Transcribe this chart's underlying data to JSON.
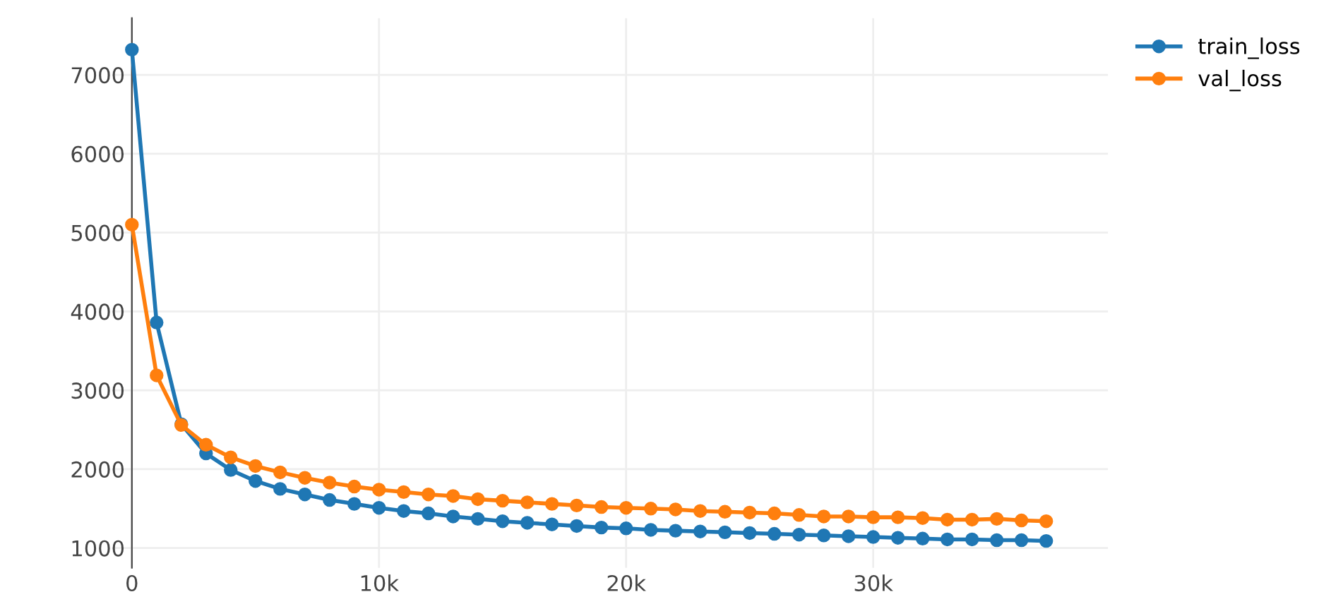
{
  "chart_data": {
    "type": "line",
    "x": [
      0,
      1000,
      2000,
      3000,
      4000,
      5000,
      6000,
      7000,
      8000,
      9000,
      10000,
      11000,
      12000,
      13000,
      14000,
      15000,
      16000,
      17000,
      18000,
      19000,
      20000,
      21000,
      22000,
      23000,
      24000,
      25000,
      26000,
      27000,
      28000,
      29000,
      30000,
      31000,
      32000,
      33000,
      34000,
      35000,
      36000,
      37000
    ],
    "series": [
      {
        "name": "train_loss",
        "color": "#1f77b4",
        "values": [
          7320,
          3860,
          2570,
          2200,
          1990,
          1850,
          1750,
          1680,
          1610,
          1560,
          1510,
          1470,
          1440,
          1400,
          1370,
          1340,
          1320,
          1300,
          1280,
          1260,
          1250,
          1230,
          1220,
          1210,
          1200,
          1190,
          1180,
          1170,
          1160,
          1150,
          1140,
          1130,
          1120,
          1110,
          1110,
          1100,
          1100,
          1090
        ]
      },
      {
        "name": "val_loss",
        "color": "#ff7f0e",
        "values": [
          5100,
          3190,
          2560,
          2310,
          2150,
          2040,
          1960,
          1890,
          1830,
          1780,
          1740,
          1710,
          1680,
          1660,
          1620,
          1600,
          1580,
          1560,
          1540,
          1520,
          1510,
          1500,
          1490,
          1470,
          1460,
          1450,
          1440,
          1420,
          1400,
          1400,
          1390,
          1390,
          1380,
          1360,
          1360,
          1370,
          1350,
          1340
        ]
      }
    ],
    "xlim": [
      -800,
      39500
    ],
    "xticks": [
      {
        "value": 0,
        "label": "0"
      },
      {
        "value": 10000,
        "label": "10k"
      },
      {
        "value": 20000,
        "label": "20k"
      },
      {
        "value": 30000,
        "label": "30k"
      }
    ],
    "ylim": [
      750,
      7720
    ],
    "yticks": [
      1000,
      2000,
      3000,
      4000,
      5000,
      6000,
      7000
    ],
    "grid": true,
    "legend": "top right",
    "marker": "circle",
    "line_style": "solid"
  }
}
